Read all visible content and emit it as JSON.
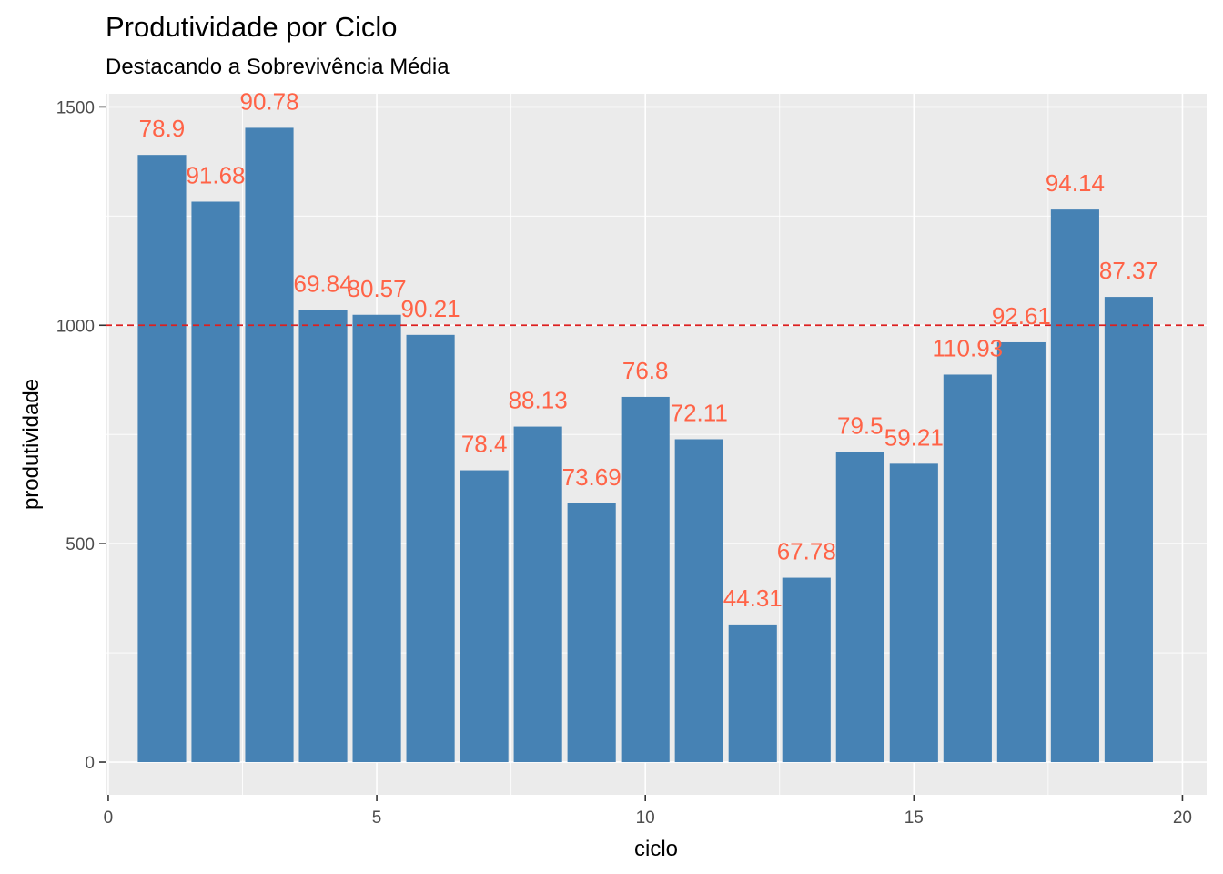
{
  "chart_data": {
    "type": "bar",
    "title": "Produtividade por Ciclo",
    "subtitle": "Destacando a Sobrevivência Média",
    "xlabel": "ciclo",
    "ylabel": "produtividade",
    "xlim": [
      -0.05,
      20.45
    ],
    "ylim": [
      -75,
      1530
    ],
    "xticks": [
      0,
      5,
      10,
      15,
      20
    ],
    "yticks": [
      0,
      500,
      1000,
      1500
    ],
    "x": [
      1,
      2,
      3,
      4,
      5,
      6,
      7,
      8,
      9,
      10,
      11,
      12,
      13,
      14,
      15,
      16,
      17,
      18,
      19
    ],
    "values": [
      1390,
      1283,
      1452,
      1035,
      1024,
      978,
      668,
      768,
      592,
      836,
      739,
      315,
      422,
      710,
      683,
      887,
      961,
      1265,
      1065
    ],
    "labels": [
      "78.9",
      "91.68",
      "90.78",
      "69.84",
      "80.57",
      "90.21",
      "78.4",
      "88.13",
      "73.69",
      "76.8",
      "72.11",
      "44.31",
      "67.78",
      "79.5",
      "59.21",
      "110.93",
      "92.61",
      "94.14",
      "87.37"
    ],
    "reference_line": 1000,
    "grid": true,
    "colors": {
      "bar": "#4682B4",
      "label": "#FF6347",
      "reference_line": "#DD1F1F",
      "panel": "#EBEBEB",
      "grid": "#FFFFFF"
    }
  }
}
